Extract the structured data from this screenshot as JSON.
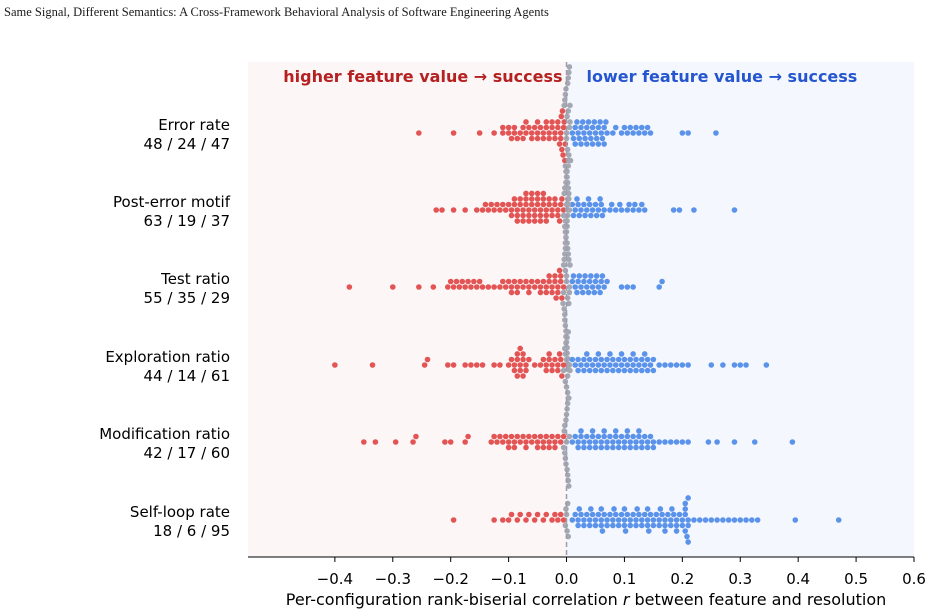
{
  "header": {
    "running_title": "Same Signal, Different Semantics: A Cross-Framework Behavioral Analysis of Software Engineering Agents"
  },
  "colors": {
    "positive": "#e35454",
    "negative": "#5b93ea",
    "neutral": "#a5a8b2",
    "left_bg": "#fcf6f6",
    "right_bg": "#f4f8fe",
    "left_text": "#b52020",
    "right_text": "#2555cf",
    "zero_line": "#9a9dab"
  },
  "chart_data": {
    "type": "scatter",
    "subtype": "beeswarm",
    "xlabel_prefix": "Per-configuration rank-biserial correlation ",
    "xlabel_var": "r",
    "xlabel_suffix": " between feature and resolution",
    "xlim": [
      -0.55,
      0.6
    ],
    "xticks": [
      -0.4,
      -0.3,
      -0.2,
      -0.1,
      0.0,
      0.1,
      0.2,
      0.3,
      0.4,
      0.5,
      0.6
    ],
    "xtick_labels": [
      "−0.4",
      "−0.3",
      "−0.2",
      "−0.1",
      "0.0",
      "0.1",
      "0.2",
      "0.3",
      "0.4",
      "0.5",
      "0.6"
    ],
    "left_annotation": "higher feature value → success",
    "right_annotation": "lower feature value → success",
    "grid": false,
    "legend": "none",
    "categories": [
      {
        "name": "Error rate",
        "counts": "48 / 24 / 47",
        "red": [
          -0.255,
          -0.195,
          -0.15,
          -0.125,
          -0.11,
          -0.1,
          -0.09,
          -0.085,
          -0.075,
          -0.07,
          -0.065,
          -0.06,
          -0.055,
          -0.05,
          -0.045,
          -0.04,
          -0.035,
          -0.03,
          -0.025,
          -0.02,
          -0.015,
          -0.01,
          -0.008,
          -0.006,
          -0.005,
          -0.004,
          -0.003,
          -0.002,
          -0.1,
          -0.09,
          -0.08,
          -0.07,
          -0.06,
          -0.05,
          -0.04,
          -0.03,
          -0.02,
          -0.012,
          -0.009,
          -0.007,
          -0.11,
          -0.095,
          -0.075,
          -0.05,
          -0.035,
          -0.025,
          -0.015,
          -0.01
        ],
        "gray": [
          -0.004,
          -0.003,
          -0.002,
          -0.001,
          0.0,
          0.001,
          0.002,
          0.003,
          0.004,
          0.005,
          0.006,
          0.007,
          -0.002,
          0.0,
          0.002,
          0.003,
          0.005,
          0.006,
          0.004,
          0.001,
          -0.001,
          0.002,
          0.003,
          0.004
        ],
        "blue": [
          0.01,
          0.015,
          0.02,
          0.025,
          0.03,
          0.035,
          0.04,
          0.045,
          0.05,
          0.055,
          0.06,
          0.065,
          0.07,
          0.085,
          0.095,
          0.105,
          0.115,
          0.125,
          0.135,
          0.145,
          0.2,
          0.21,
          0.258,
          0.012,
          0.018,
          0.022,
          0.028,
          0.032,
          0.038,
          0.042,
          0.048,
          0.052,
          0.058,
          0.062,
          0.068,
          0.08,
          0.1,
          0.12,
          0.13,
          0.14,
          0.015,
          0.025,
          0.035,
          0.045,
          0.055,
          0.065,
          0.11
        ]
      },
      {
        "name": "Post-error motif",
        "counts": "63 / 19 / 37",
        "red": [
          -0.225,
          -0.215,
          -0.195,
          -0.175,
          -0.155,
          -0.145,
          -0.135,
          -0.125,
          -0.115,
          -0.105,
          -0.095,
          -0.085,
          -0.075,
          -0.065,
          -0.055,
          -0.045,
          -0.035,
          -0.025,
          -0.015,
          -0.01,
          -0.005,
          -0.14,
          -0.13,
          -0.12,
          -0.11,
          -0.1,
          -0.09,
          -0.08,
          -0.07,
          -0.06,
          -0.05,
          -0.04,
          -0.03,
          -0.02,
          -0.012,
          -0.008,
          -0.095,
          -0.085,
          -0.075,
          -0.065,
          -0.055,
          -0.045,
          -0.035,
          -0.025,
          -0.015,
          -0.09,
          -0.08,
          -0.07,
          -0.06,
          -0.05,
          -0.04,
          -0.03,
          -0.02,
          -0.085,
          -0.075,
          -0.065,
          -0.055,
          -0.045,
          -0.035,
          -0.07,
          -0.06,
          -0.05,
          -0.04
        ],
        "gray": [
          -0.005,
          -0.004,
          -0.003,
          -0.002,
          -0.001,
          0.0,
          0.001,
          0.002,
          0.003,
          0.004,
          -0.003,
          -0.001,
          0.001,
          0.003,
          0.0,
          -0.002,
          0.002,
          0.004,
          0.005
        ],
        "blue": [
          0.01,
          0.015,
          0.02,
          0.025,
          0.03,
          0.035,
          0.04,
          0.045,
          0.05,
          0.055,
          0.06,
          0.065,
          0.075,
          0.085,
          0.095,
          0.105,
          0.115,
          0.125,
          0.135,
          0.185,
          0.195,
          0.22,
          0.29,
          0.012,
          0.022,
          0.032,
          0.042,
          0.052,
          0.062,
          0.078,
          0.092,
          0.108,
          0.118,
          0.13,
          0.018,
          0.038,
          0.058
        ]
      },
      {
        "name": "Test ratio",
        "counts": "55 / 35 / 29",
        "red": [
          -0.375,
          -0.3,
          -0.255,
          -0.23,
          -0.205,
          -0.195,
          -0.185,
          -0.175,
          -0.165,
          -0.155,
          -0.145,
          -0.135,
          -0.125,
          -0.115,
          -0.105,
          -0.095,
          -0.085,
          -0.075,
          -0.065,
          -0.055,
          -0.045,
          -0.035,
          -0.025,
          -0.015,
          -0.01,
          -0.005,
          -0.2,
          -0.19,
          -0.18,
          -0.17,
          -0.16,
          -0.15,
          -0.11,
          -0.1,
          -0.09,
          -0.08,
          -0.07,
          -0.06,
          -0.05,
          -0.04,
          -0.03,
          -0.02,
          -0.018,
          -0.012,
          -0.008,
          -0.095,
          -0.085,
          -0.065,
          -0.045,
          -0.035,
          -0.025,
          -0.015,
          -0.03,
          -0.02,
          -0.01
        ],
        "gray": [
          -0.006,
          -0.005,
          -0.004,
          -0.003,
          -0.002,
          -0.001,
          0.0,
          0.001,
          0.002,
          0.003,
          0.004,
          0.005,
          0.006,
          -0.004,
          -0.002,
          0.0,
          0.002,
          0.004,
          -0.005,
          -0.003,
          -0.001,
          0.001,
          0.003,
          0.005,
          -0.002,
          0.0,
          0.002,
          -0.001,
          0.001,
          0.0,
          0.003,
          -0.003,
          0.002,
          -0.002,
          0.001
        ],
        "blue": [
          0.01,
          0.015,
          0.02,
          0.025,
          0.03,
          0.035,
          0.04,
          0.045,
          0.05,
          0.055,
          0.06,
          0.065,
          0.07,
          0.095,
          0.105,
          0.115,
          0.16,
          0.165,
          0.012,
          0.022,
          0.032,
          0.042,
          0.052,
          0.062,
          0.018,
          0.028,
          0.038,
          0.048,
          0.058
        ]
      },
      {
        "name": "Exploration ratio",
        "counts": "44 / 14 / 61",
        "red": [
          -0.4,
          -0.335,
          -0.245,
          -0.24,
          -0.205,
          -0.195,
          -0.175,
          -0.165,
          -0.155,
          -0.145,
          -0.125,
          -0.115,
          -0.095,
          -0.09,
          -0.085,
          -0.08,
          -0.075,
          -0.07,
          -0.065,
          -0.055,
          -0.045,
          -0.035,
          -0.025,
          -0.015,
          -0.01,
          -0.005,
          -0.1,
          -0.09,
          -0.085,
          -0.08,
          -0.075,
          -0.07,
          -0.035,
          -0.03,
          -0.025,
          -0.02,
          -0.015,
          -0.012,
          -0.008,
          -0.085,
          -0.08,
          -0.075,
          -0.04,
          -0.03
        ],
        "gray": [
          -0.005,
          -0.003,
          -0.002,
          -0.001,
          0.0,
          0.001,
          0.002,
          0.003,
          0.004,
          0.005,
          -0.002,
          0.0,
          0.002,
          0.006
        ],
        "blue": [
          0.01,
          0.015,
          0.02,
          0.025,
          0.03,
          0.035,
          0.04,
          0.045,
          0.05,
          0.055,
          0.06,
          0.065,
          0.07,
          0.075,
          0.08,
          0.085,
          0.09,
          0.095,
          0.1,
          0.105,
          0.11,
          0.115,
          0.12,
          0.125,
          0.13,
          0.135,
          0.14,
          0.145,
          0.15,
          0.16,
          0.17,
          0.18,
          0.19,
          0.2,
          0.21,
          0.25,
          0.27,
          0.29,
          0.3,
          0.31,
          0.345,
          0.02,
          0.03,
          0.04,
          0.05,
          0.06,
          0.07,
          0.08,
          0.09,
          0.1,
          0.11,
          0.12,
          0.13,
          0.14,
          0.15,
          0.035,
          0.055,
          0.075,
          0.095,
          0.115,
          0.135
        ]
      },
      {
        "name": "Modification ratio",
        "counts": "42 / 17 / 60",
        "red": [
          -0.35,
          -0.33,
          -0.295,
          -0.265,
          -0.26,
          -0.21,
          -0.2,
          -0.175,
          -0.17,
          -0.13,
          -0.12,
          -0.11,
          -0.1,
          -0.09,
          -0.08,
          -0.07,
          -0.06,
          -0.05,
          -0.04,
          -0.03,
          -0.02,
          -0.01,
          -0.005,
          -0.125,
          -0.115,
          -0.105,
          -0.095,
          -0.085,
          -0.075,
          -0.065,
          -0.055,
          -0.045,
          -0.035,
          -0.025,
          -0.015,
          -0.1,
          -0.09,
          -0.07,
          -0.05,
          -0.04,
          -0.02,
          -0.03
        ],
        "gray": [
          -0.005,
          -0.004,
          -0.003,
          -0.002,
          -0.001,
          0.0,
          0.001,
          0.002,
          0.003,
          0.004,
          0.005,
          -0.003,
          -0.001,
          0.001,
          0.003,
          0.0,
          0.002
        ],
        "blue": [
          0.01,
          0.015,
          0.02,
          0.025,
          0.03,
          0.035,
          0.04,
          0.045,
          0.05,
          0.055,
          0.06,
          0.065,
          0.07,
          0.075,
          0.08,
          0.085,
          0.09,
          0.095,
          0.1,
          0.105,
          0.11,
          0.115,
          0.12,
          0.125,
          0.13,
          0.135,
          0.14,
          0.15,
          0.16,
          0.17,
          0.18,
          0.19,
          0.2,
          0.21,
          0.245,
          0.26,
          0.29,
          0.325,
          0.39,
          0.02,
          0.03,
          0.04,
          0.05,
          0.06,
          0.07,
          0.08,
          0.09,
          0.1,
          0.11,
          0.12,
          0.13,
          0.14,
          0.15,
          0.025,
          0.045,
          0.065,
          0.085,
          0.105,
          0.125,
          0.145
        ]
      },
      {
        "name": "Self-loop rate",
        "counts": "18 / 6 / 95",
        "red": [
          -0.195,
          -0.125,
          -0.11,
          -0.095,
          -0.08,
          -0.065,
          -0.05,
          -0.035,
          -0.02,
          -0.01,
          -0.005,
          -0.1,
          -0.085,
          -0.07,
          -0.055,
          -0.04,
          -0.025,
          -0.015
        ],
        "gray": [
          -0.002,
          -0.001,
          0.0,
          0.001,
          0.002,
          0.003
        ],
        "blue": [
          0.01,
          0.015,
          0.02,
          0.025,
          0.03,
          0.035,
          0.04,
          0.045,
          0.05,
          0.055,
          0.06,
          0.065,
          0.07,
          0.075,
          0.08,
          0.085,
          0.09,
          0.095,
          0.1,
          0.105,
          0.11,
          0.115,
          0.12,
          0.125,
          0.13,
          0.135,
          0.14,
          0.145,
          0.15,
          0.155,
          0.16,
          0.165,
          0.17,
          0.175,
          0.18,
          0.185,
          0.19,
          0.195,
          0.2,
          0.205,
          0.21,
          0.22,
          0.23,
          0.24,
          0.25,
          0.26,
          0.27,
          0.28,
          0.29,
          0.3,
          0.31,
          0.32,
          0.33,
          0.395,
          0.47,
          0.02,
          0.03,
          0.04,
          0.05,
          0.06,
          0.07,
          0.08,
          0.09,
          0.1,
          0.11,
          0.12,
          0.13,
          0.14,
          0.15,
          0.16,
          0.17,
          0.18,
          0.19,
          0.2,
          0.21,
          0.022,
          0.042,
          0.062,
          0.082,
          0.102,
          0.122,
          0.142,
          0.162,
          0.182,
          0.205,
          0.208,
          0.21,
          0.205,
          0.06,
          0.1,
          0.14,
          0.17,
          0.19,
          0.21,
          0.205
        ]
      }
    ]
  }
}
